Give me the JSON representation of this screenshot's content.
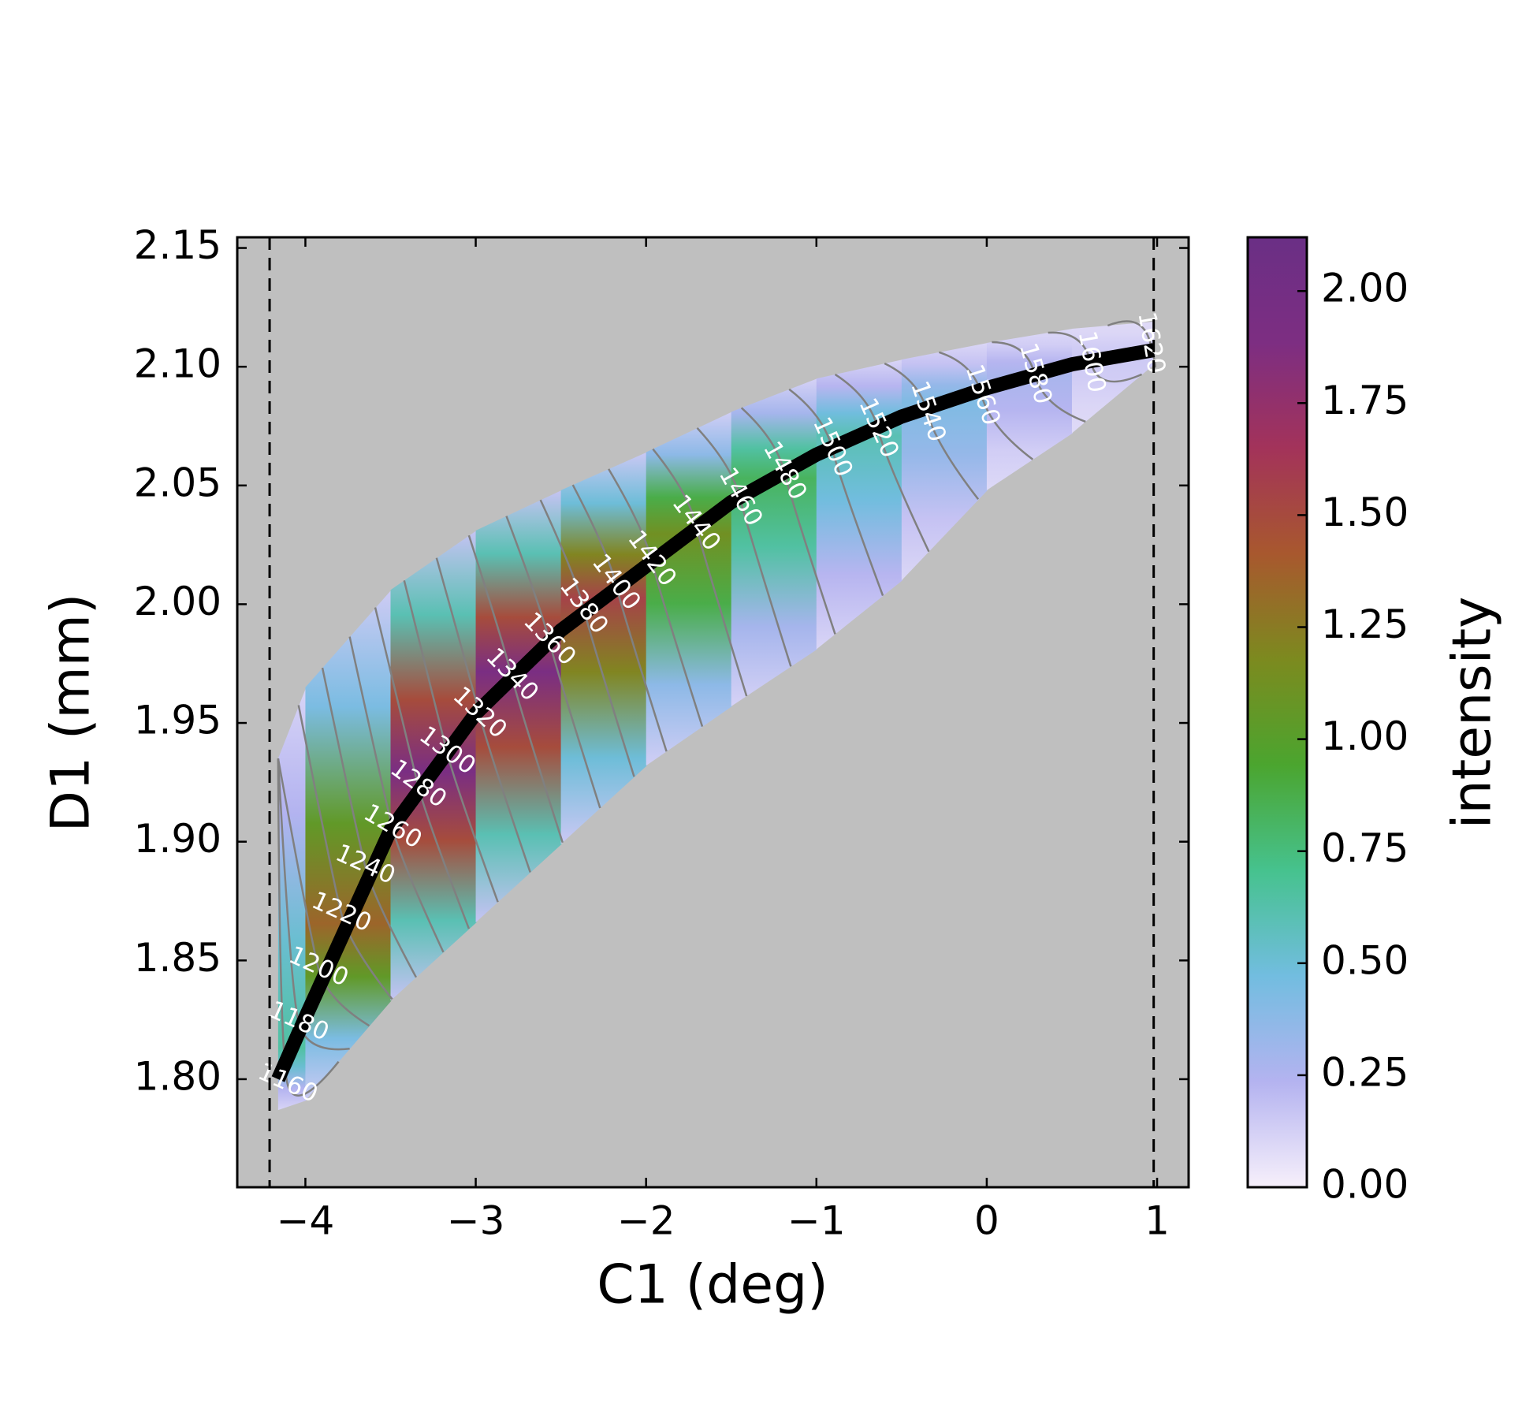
{
  "chart_data": {
    "type": "heatmap",
    "x_label": "C1 (deg)",
    "y_label": "D1 (mm)",
    "colorbar_label": "intensity",
    "xlim": [
      -4.4,
      1.185
    ],
    "ylim": [
      1.7545,
      2.1545
    ],
    "clim": [
      0,
      2.12
    ],
    "xticks": [
      {
        "value": -4,
        "label": "−4"
      },
      {
        "value": -3,
        "label": "−3"
      },
      {
        "value": -2,
        "label": "−2"
      },
      {
        "value": -1,
        "label": "−1"
      },
      0,
      1
    ],
    "yticks": [
      {
        "value": 1.8,
        "label": "1.80"
      },
      1.85,
      {
        "value": 1.9,
        "label": "1.90"
      },
      1.95,
      {
        "value": 2.0,
        "label": "2.00"
      },
      2.05,
      {
        "value": 2.1,
        "label": "2.10"
      },
      2.15
    ],
    "cticks": [
      {
        "value": 0,
        "label": "0.00"
      },
      0.25,
      {
        "value": 0.5,
        "label": "0.50"
      },
      0.75,
      {
        "value": 1,
        "label": "1.00"
      },
      1.25,
      {
        "value": 1.5,
        "label": "1.50"
      },
      1.75,
      {
        "value": 2,
        "label": "2.00"
      }
    ],
    "colormap": [
      "#f7f0fb",
      "#b4b3f0",
      "#72bde0",
      "#46c28e",
      "#4ba52f",
      "#7c8a1f",
      "#a8582e",
      "#a3335a",
      "#7d2e82",
      "#6a2f85"
    ],
    "background": "#bfbfbf",
    "vlines": [
      -4.21,
      0.98
    ],
    "ridge": {
      "color": "#000000",
      "x": [
        -4.16,
        -4.0,
        -3.5,
        -3.0,
        -2.5,
        -2.0,
        -1.5,
        -1.0,
        -0.5,
        0,
        0.5,
        0.98
      ],
      "y": [
        1.8,
        1.826,
        1.905,
        1.954,
        1.989,
        2.016,
        2.043,
        2.063,
        2.079,
        2.091,
        2.101,
        2.107
      ],
      "intensity": [
        0.4,
        0.9,
        1.8,
        2.05,
        1.8,
        1.3,
        0.95,
        0.7,
        0.5,
        0.35,
        0.2,
        0.1
      ],
      "upper": [
        1.935,
        1.965,
        2.006,
        2.031,
        2.048,
        2.064,
        2.081,
        2.095,
        2.103,
        2.11,
        2.116,
        2.119
      ],
      "lower": [
        1.787,
        1.791,
        1.833,
        1.866,
        1.899,
        1.932,
        1.957,
        1.981,
        2.01,
        2.048,
        2.072,
        2.101
      ]
    },
    "contours": [
      {
        "level": 1160,
        "x": -4.105,
        "y": 1.798
      },
      {
        "level": 1180,
        "x": -4.04,
        "y": 1.824
      },
      {
        "level": 1200,
        "x": -3.925,
        "y": 1.847
      },
      {
        "level": 1220,
        "x": -3.79,
        "y": 1.87
      },
      {
        "level": 1240,
        "x": -3.65,
        "y": 1.89
      },
      {
        "level": 1260,
        "x": -3.49,
        "y": 1.906
      },
      {
        "level": 1280,
        "x": -3.34,
        "y": 1.924
      },
      {
        "level": 1300,
        "x": -3.17,
        "y": 1.938
      },
      {
        "level": 1320,
        "x": -2.98,
        "y": 1.954
      },
      {
        "level": 1340,
        "x": -2.79,
        "y": 1.97
      },
      {
        "level": 1360,
        "x": -2.57,
        "y": 1.985
      },
      {
        "level": 1380,
        "x": -2.37,
        "y": 1.999
      },
      {
        "level": 1400,
        "x": -2.18,
        "y": 2.009
      },
      {
        "level": 1420,
        "x": -1.97,
        "y": 2.019
      },
      {
        "level": 1440,
        "x": -1.71,
        "y": 2.034
      },
      {
        "level": 1460,
        "x": -1.45,
        "y": 2.045
      },
      {
        "level": 1480,
        "x": -1.19,
        "y": 2.056
      },
      {
        "level": 1500,
        "x": -0.91,
        "y": 2.066
      },
      {
        "level": 1520,
        "x": -0.64,
        "y": 2.074
      },
      {
        "level": 1540,
        "x": -0.35,
        "y": 2.081
      },
      {
        "level": 1560,
        "x": -0.03,
        "y": 2.088
      },
      {
        "level": 1580,
        "x": 0.28,
        "y": 2.097
      },
      {
        "level": 1600,
        "x": 0.61,
        "y": 2.102
      },
      {
        "level": 1620,
        "x": 0.96,
        "y": 2.11
      }
    ]
  }
}
